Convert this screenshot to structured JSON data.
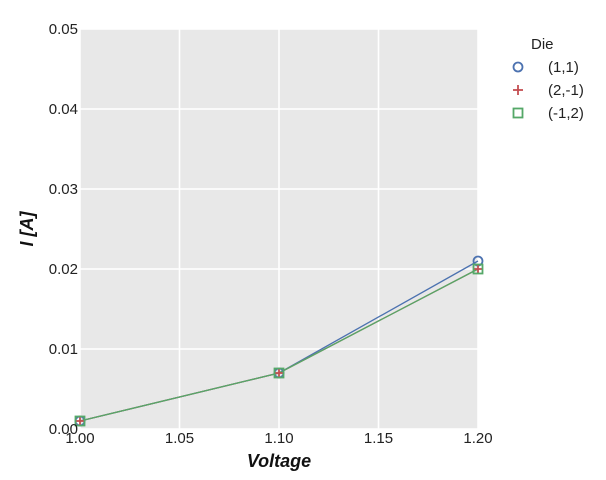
{
  "chart_data": {
    "type": "line",
    "xlabel": "Voltage",
    "ylabel": "I [A]",
    "xlim": [
      1.0,
      1.2
    ],
    "ylim": [
      0.0,
      0.05
    ],
    "xticks": [
      "1.00",
      "1.05",
      "1.10",
      "1.15",
      "1.20"
    ],
    "yticks": [
      "0.00",
      "0.01",
      "0.02",
      "0.03",
      "0.04",
      "0.05"
    ],
    "grid": true,
    "legend": {
      "title": "Die",
      "placement": "outside-right"
    },
    "background_color": "#e8e8e8",
    "grid_color": "#ffffff",
    "series": [
      {
        "name": "(1,1)",
        "marker": "circle",
        "color": "#4c72b0",
        "x": [
          1.0,
          1.1,
          1.2
        ],
        "y": [
          0.001,
          0.007,
          0.021
        ]
      },
      {
        "name": "(2,-1)",
        "marker": "plus",
        "color": "#c44e52",
        "x": [
          1.0,
          1.1,
          1.2
        ],
        "y": [
          0.001,
          0.007,
          0.02
        ]
      },
      {
        "name": "(-1,2)",
        "marker": "square",
        "color": "#55a868",
        "x": [
          1.0,
          1.1,
          1.2
        ],
        "y": [
          0.001,
          0.007,
          0.02
        ]
      }
    ]
  }
}
